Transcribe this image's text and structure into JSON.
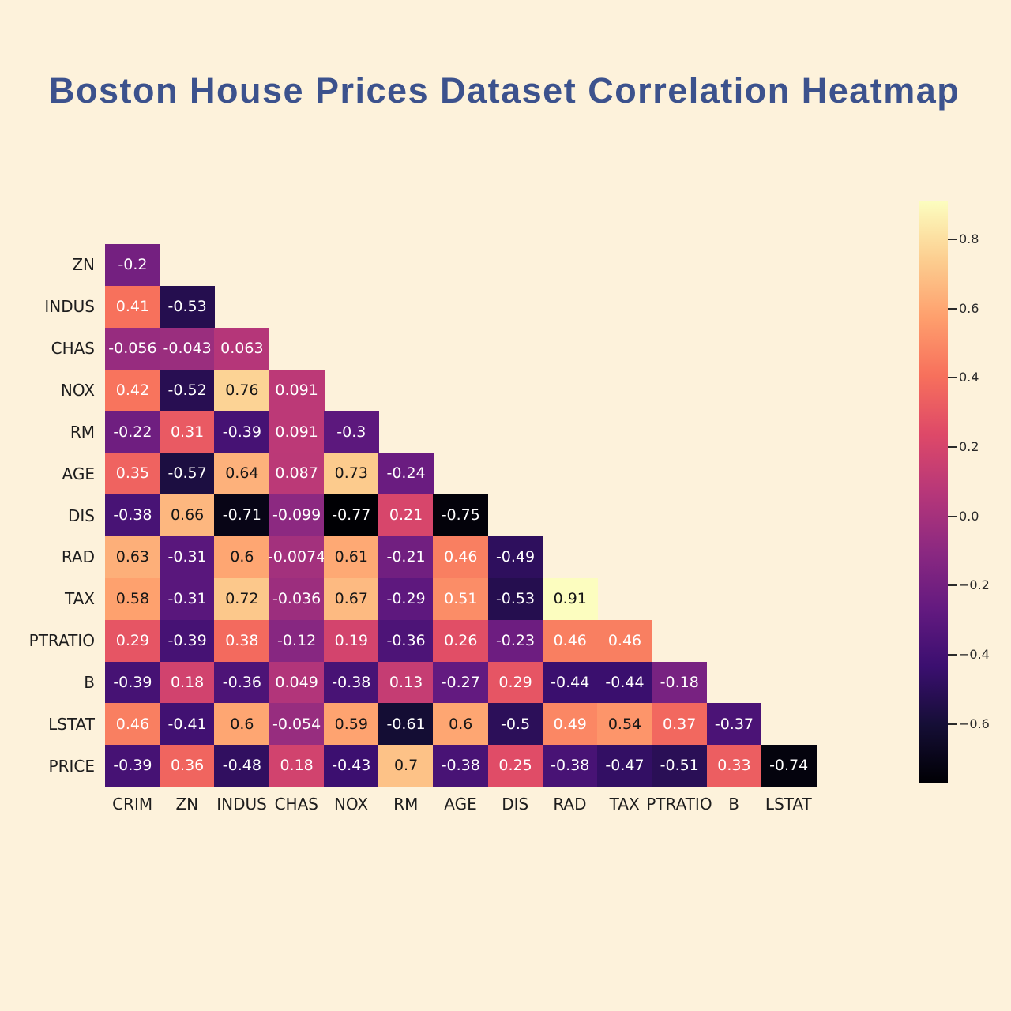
{
  "chart_data": {
    "type": "heatmap",
    "title": "Boston House Prices Dataset Correlation Heatmap",
    "colormap": "magma",
    "vmin": -0.77,
    "vmax": 0.91,
    "shape": "lower-triangle",
    "x_labels": [
      "CRIM",
      "ZN",
      "INDUS",
      "CHAS",
      "NOX",
      "RM",
      "AGE",
      "DIS",
      "RAD",
      "TAX",
      "PTRATIO",
      "B",
      "LSTAT"
    ],
    "y_labels": [
      "ZN",
      "INDUS",
      "CHAS",
      "NOX",
      "RM",
      "AGE",
      "DIS",
      "RAD",
      "TAX",
      "PTRATIO",
      "B",
      "LSTAT",
      "PRICE"
    ],
    "values": [
      [
        "-0.2"
      ],
      [
        "0.41",
        "-0.53"
      ],
      [
        "-0.056",
        "-0.043",
        "0.063"
      ],
      [
        "0.42",
        "-0.52",
        "0.76",
        "0.091"
      ],
      [
        "-0.22",
        "0.31",
        "-0.39",
        "0.091",
        "-0.3"
      ],
      [
        "0.35",
        "-0.57",
        "0.64",
        "0.087",
        "0.73",
        "-0.24"
      ],
      [
        "-0.38",
        "0.66",
        "-0.71",
        "-0.099",
        "-0.77",
        "0.21",
        "-0.75"
      ],
      [
        "0.63",
        "-0.31",
        "0.6",
        "-0.0074",
        "0.61",
        "-0.21",
        "0.46",
        "-0.49"
      ],
      [
        "0.58",
        "-0.31",
        "0.72",
        "-0.036",
        "0.67",
        "-0.29",
        "0.51",
        "-0.53",
        "0.91"
      ],
      [
        "0.29",
        "-0.39",
        "0.38",
        "-0.12",
        "0.19",
        "-0.36",
        "0.26",
        "-0.23",
        "0.46",
        "0.46"
      ],
      [
        "-0.39",
        "0.18",
        "-0.36",
        "0.049",
        "-0.38",
        "0.13",
        "-0.27",
        "0.29",
        "-0.44",
        "-0.44",
        "-0.18"
      ],
      [
        "0.46",
        "-0.41",
        "0.6",
        "-0.054",
        "0.59",
        "-0.61",
        "0.6",
        "-0.5",
        "0.49",
        "0.54",
        "0.37",
        "-0.37"
      ],
      [
        "-0.39",
        "0.36",
        "-0.48",
        "0.18",
        "-0.43",
        "0.7",
        "-0.38",
        "0.25",
        "-0.38",
        "-0.47",
        "-0.51",
        "0.33",
        "-0.74"
      ]
    ],
    "colorbar": {
      "tick_labels": [
        "0.8",
        "0.6",
        "0.4",
        "0.2",
        "0.0",
        "−0.2",
        "−0.4",
        "−0.6"
      ],
      "tick_values": [
        0.8,
        0.6,
        0.4,
        0.2,
        0.0,
        -0.2,
        -0.4,
        -0.6
      ],
      "position": "right"
    },
    "grid": false,
    "legend": false
  },
  "colors": {
    "background": "#fdf2db",
    "title": "#3c528d",
    "axis_labels": "#1d1d1d",
    "cell_text_light": "#ffffff",
    "cell_text_dark": "#161616",
    "colorbar_ticks": "#2a2a2a",
    "magma_stops": [
      "#000004",
      "#150e36",
      "#3b0f70",
      "#641a80",
      "#8c2981",
      "#b73779",
      "#de4968",
      "#f7705c",
      "#fe9f6d",
      "#fcce90",
      "#fcfdbf"
    ]
  }
}
